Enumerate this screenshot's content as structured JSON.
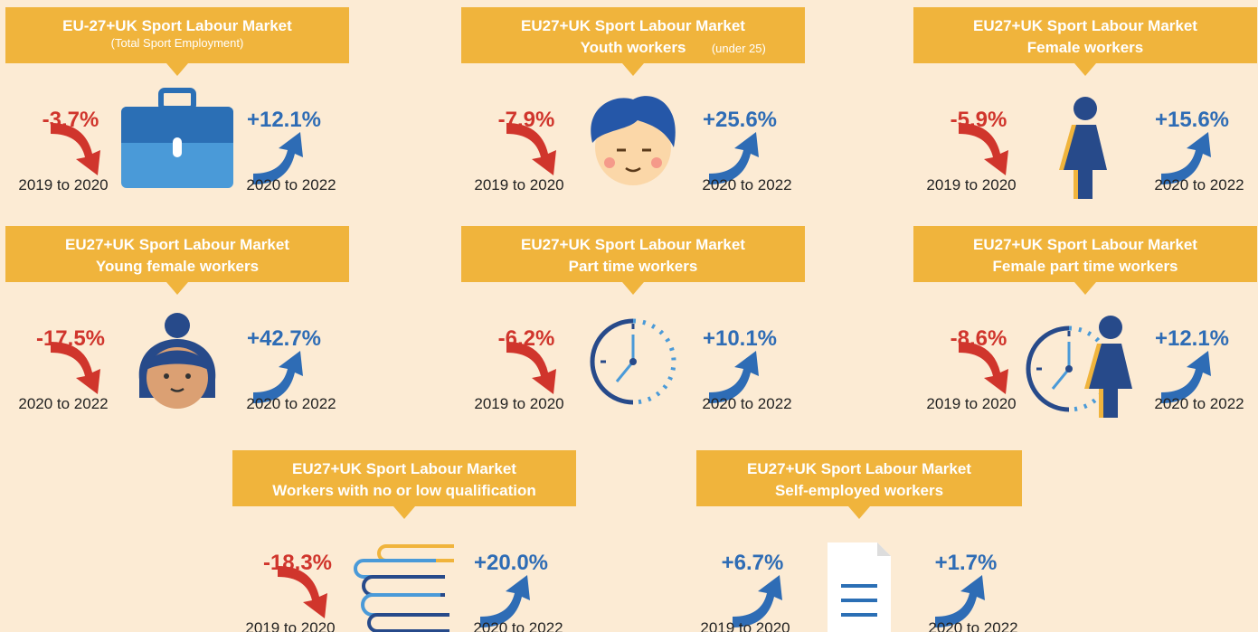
{
  "panels": [
    {
      "title": "EU-27+UK Sport Labour Market",
      "note": "(Total Sport Employment)",
      "left": {
        "value": "-3.7%",
        "period": "2019 to 2020"
      },
      "right": {
        "value": "+12.1%",
        "period": "2020 to 2022"
      }
    },
    {
      "title": "EU27+UK Sport Labour Market",
      "subtitle": "Youth workers",
      "note": "(under 25)",
      "left": {
        "value": "-7.9%",
        "period": "2019 to 2020"
      },
      "right": {
        "value": "+25.6%",
        "period": "2020 to 2022"
      }
    },
    {
      "title": "EU27+UK Sport Labour Market",
      "subtitle": "Female workers",
      "left": {
        "value": "-5.9%",
        "period": "2019 to 2020"
      },
      "right": {
        "value": "+15.6%",
        "period": "2020 to 2022"
      }
    },
    {
      "title": "EU27+UK Sport Labour Market",
      "subtitle": "Young female workers",
      "left": {
        "value": "-17.5%",
        "period": "2020 to 2022"
      },
      "right": {
        "value": "+42.7%",
        "period": "2020 to 2022"
      }
    },
    {
      "title": "EU27+UK Sport Labour Market",
      "subtitle": "Part time workers",
      "left": {
        "value": "-6.2%",
        "period": "2019 to 2020"
      },
      "right": {
        "value": "+10.1%",
        "period": "2020 to 2022"
      }
    },
    {
      "title": "EU27+UK Sport Labour Market",
      "subtitle": "Female part time workers",
      "left": {
        "value": "-8.6%",
        "period": "2019 to 2020"
      },
      "right": {
        "value": "+12.1%",
        "period": "2020 to 2022"
      }
    },
    {
      "title": "EU27+UK Sport Labour Market",
      "subtitle": "Workers with no or low qualification",
      "left": {
        "value": "-18.3%",
        "period": "2019 to 2020"
      },
      "right": {
        "value": "+20.0%",
        "period": "2020 to 2022"
      }
    },
    {
      "title": "EU27+UK Sport Labour Market",
      "subtitle": "Self-employed workers",
      "left": {
        "value": "+6.7%",
        "period": "2019 to 2020"
      },
      "right": {
        "value": "+1.7%",
        "period": "2020 to 2022"
      }
    }
  ]
}
